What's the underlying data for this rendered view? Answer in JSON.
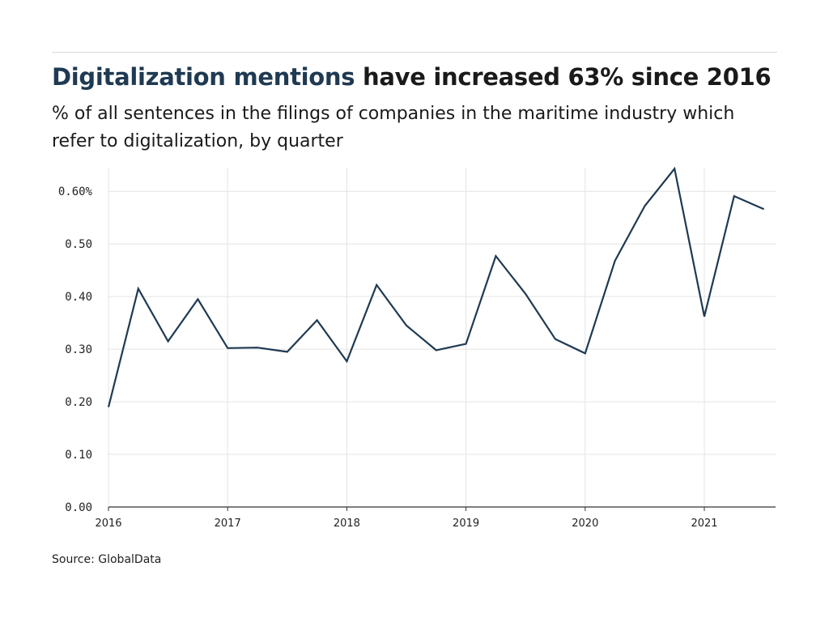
{
  "header": {
    "title_highlight": "Digitalization mentions",
    "title_rest": " have increased 63% since 2016",
    "subtitle": "% of all sentences in the filings of companies in the maritime industry which refer to digitalization, by quarter"
  },
  "source": "Source: GlobalData",
  "colors": {
    "line": "#1f3a52",
    "highlight": "#1f3a52",
    "grid": "#e4e4e4",
    "axis": "#333333"
  },
  "chart_data": {
    "type": "line",
    "title": "Digitalization mentions have increased 63% since 2016",
    "subtitle": "% of all sentences in the filings of companies in the maritime industry which refer to digitalization, by quarter",
    "x_unit": "quarter",
    "x": [
      "2016 Q1",
      "2016 Q2",
      "2016 Q3",
      "2016 Q4",
      "2017 Q1",
      "2017 Q2",
      "2017 Q3",
      "2017 Q4",
      "2018 Q1",
      "2018 Q2",
      "2018 Q3",
      "2018 Q4",
      "2019 Q1",
      "2019 Q2",
      "2019 Q3",
      "2019 Q4",
      "2020 Q1",
      "2020 Q2",
      "2020 Q3",
      "2020 Q4",
      "2021 Q1",
      "2021 Q2",
      "2021 Q3"
    ],
    "series": [
      {
        "values": [
          0.19,
          0.415,
          0.315,
          0.395,
          0.302,
          0.303,
          0.295,
          0.355,
          0.277,
          0.422,
          0.345,
          0.298,
          0.31,
          0.477,
          0.405,
          0.319,
          0.292,
          0.468,
          0.572,
          0.643,
          0.362,
          0.591,
          0.566
        ]
      }
    ],
    "x_tick_labels": [
      "2016",
      "2017",
      "2018",
      "2019",
      "2020",
      "2021"
    ],
    "y_tick_labels": [
      "0.00",
      "0.10",
      "0.20",
      "0.30",
      "0.40",
      "0.50",
      "0.60%"
    ],
    "y_ticks": [
      0,
      0.1,
      0.2,
      0.3,
      0.4,
      0.5,
      0.6
    ],
    "ylim": [
      0,
      0.645
    ],
    "grid": true,
    "legend": false
  }
}
